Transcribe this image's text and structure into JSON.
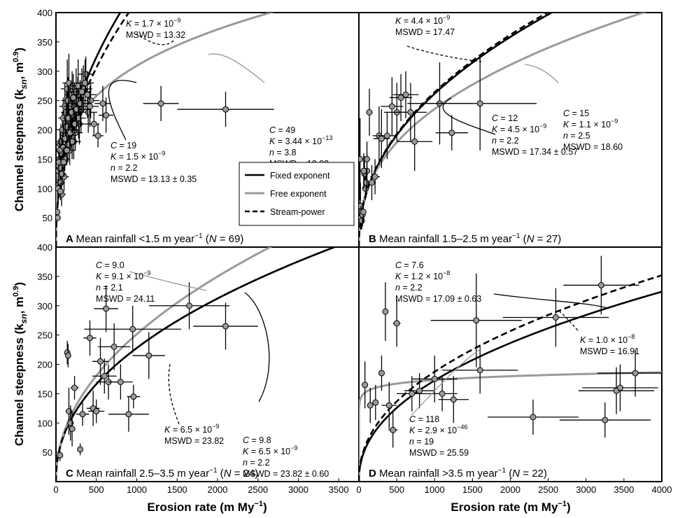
{
  "chart_data": [
    {
      "id": "A",
      "type": "scatter",
      "panel_letter": "A",
      "title": "Mean rainfall <1.5 m year",
      "title_sup": "−1",
      "n_label": "N",
      "n_value": "= 69)",
      "xlim": [
        0,
        3750
      ],
      "ylim": [
        0,
        400
      ],
      "x_ticks": [],
      "y_ticks": [
        "50",
        "100",
        "150",
        "200",
        "250",
        "300",
        "350",
        "400"
      ],
      "curves": [
        {
          "series": "fixed",
          "K": 1.5e-09,
          "n": 2.2
        },
        {
          "series": "free",
          "K": 3.44e-13,
          "n": 3.8
        },
        {
          "series": "stream",
          "K": 1.7e-09,
          "n": 2.2
        }
      ],
      "points": [
        [
          15,
          60,
          20,
          0
        ],
        [
          20,
          50,
          20,
          0
        ],
        [
          25,
          100,
          20,
          15
        ],
        [
          30,
          130,
          20,
          20
        ],
        [
          40,
          150,
          30,
          20
        ],
        [
          50,
          175,
          40,
          25
        ],
        [
          60,
          180,
          50,
          30
        ],
        [
          70,
          160,
          50,
          25
        ],
        [
          80,
          200,
          60,
          30
        ],
        [
          90,
          220,
          60,
          35
        ],
        [
          100,
          120,
          60,
          25
        ],
        [
          110,
          240,
          70,
          40
        ],
        [
          120,
          190,
          70,
          30
        ],
        [
          130,
          230,
          70,
          40
        ],
        [
          140,
          270,
          80,
          50
        ],
        [
          150,
          250,
          80,
          40
        ],
        [
          160,
          280,
          80,
          50
        ],
        [
          170,
          210,
          80,
          30
        ],
        [
          180,
          240,
          90,
          40
        ],
        [
          190,
          200,
          90,
          30
        ],
        [
          200,
          260,
          90,
          40
        ],
        [
          210,
          225,
          90,
          35
        ],
        [
          220,
          180,
          90,
          30
        ],
        [
          230,
          240,
          100,
          40
        ],
        [
          250,
          265,
          110,
          40
        ],
        [
          270,
          250,
          110,
          40
        ],
        [
          290,
          210,
          120,
          35
        ],
        [
          310,
          235,
          110,
          40
        ],
        [
          340,
          270,
          110,
          40
        ],
        [
          370,
          295,
          100,
          30
        ],
        [
          400,
          230,
          110,
          35
        ],
        [
          430,
          250,
          110,
          30
        ],
        [
          470,
          210,
          70,
          20
        ],
        [
          520,
          190,
          70,
          20
        ],
        [
          580,
          245,
          100,
          30
        ],
        [
          620,
          225,
          90,
          30
        ],
        [
          1300,
          245,
          220,
          30
        ],
        [
          2100,
          235,
          600,
          30
        ],
        [
          60,
          110,
          50,
          20
        ],
        [
          70,
          90,
          50,
          20
        ],
        [
          80,
          140,
          50,
          20
        ],
        [
          90,
          170,
          50,
          25
        ],
        [
          110,
          150,
          60,
          20
        ],
        [
          130,
          205,
          60,
          30
        ],
        [
          150,
          175,
          70,
          30
        ],
        [
          170,
          165,
          70,
          25
        ],
        [
          200,
          180,
          80,
          30
        ],
        [
          240,
          195,
          90,
          30
        ],
        [
          280,
          220,
          90,
          35
        ],
        [
          50,
          135,
          40,
          20
        ],
        [
          45,
          165,
          30,
          20
        ],
        [
          35,
          145,
          30,
          20
        ],
        [
          55,
          95,
          40,
          15
        ],
        [
          75,
          125,
          50,
          20
        ],
        [
          95,
          145,
          50,
          25
        ],
        [
          115,
          185,
          60,
          25
        ],
        [
          135,
          165,
          60,
          25
        ],
        [
          155,
          220,
          70,
          30
        ],
        [
          175,
          195,
          70,
          30
        ],
        [
          195,
          230,
          80,
          35
        ],
        [
          215,
          255,
          90,
          40
        ],
        [
          235,
          210,
          90,
          35
        ],
        [
          255,
          235,
          100,
          40
        ],
        [
          275,
          275,
          100,
          45
        ],
        [
          300,
          245,
          110,
          40
        ],
        [
          320,
          265,
          110,
          40
        ],
        [
          360,
          280,
          110,
          40
        ],
        [
          390,
          260,
          110,
          40
        ],
        [
          420,
          240,
          110,
          35
        ]
      ],
      "labels": [
        {
          "lines": [
            "C = 19",
            "K = 1.5 × 10",
            "n = 2.2",
            "MSWD = 13.13 ± 0.35"
          ],
          "sup": "−9"
        },
        {
          "lines": [
            "C = 49",
            "K = 3.44 × 10",
            "n = 3.8",
            "MSWD = 12.83"
          ],
          "sup": "−13"
        },
        {
          "lines": [
            "K = 1.7 × 10",
            "MSWD = 13.32"
          ],
          "sup": "−9"
        }
      ],
      "legend": {
        "position": "bottom-right",
        "items": [
          "Fixed exponent",
          "Free exponent",
          "Stream-power"
        ]
      }
    },
    {
      "id": "B",
      "type": "scatter",
      "panel_letter": "B",
      "title": "Mean rainfall 1.5–2.5 m year",
      "title_sup": "−1",
      "n_label": "N",
      "n_value": "= 27)",
      "xlim": [
        0,
        3750
      ],
      "ylim": [
        0,
        400
      ],
      "x_ticks": [],
      "y_ticks": [],
      "curves": [
        {
          "series": "fixed",
          "K": 4.5e-09,
          "n": 2.2
        },
        {
          "series": "free",
          "K": 1.1e-09,
          "n": 2.5
        },
        {
          "series": "stream",
          "K": 4.4e-09,
          "n": 2.2
        }
      ],
      "points": [
        [
          15,
          150,
          30,
          70
        ],
        [
          20,
          70,
          30,
          40
        ],
        [
          25,
          50,
          20,
          20
        ],
        [
          35,
          45,
          20,
          15
        ],
        [
          45,
          55,
          30,
          20
        ],
        [
          55,
          60,
          30,
          20
        ],
        [
          70,
          125,
          40,
          30
        ],
        [
          80,
          100,
          40,
          20
        ],
        [
          90,
          110,
          40,
          25
        ],
        [
          100,
          130,
          40,
          30
        ],
        [
          130,
          230,
          40,
          40
        ],
        [
          250,
          190,
          80,
          50
        ],
        [
          280,
          185,
          100,
          50
        ],
        [
          350,
          190,
          120,
          40
        ],
        [
          410,
          240,
          140,
          50
        ],
        [
          470,
          230,
          160,
          50
        ],
        [
          520,
          255,
          140,
          40
        ],
        [
          580,
          260,
          160,
          40
        ],
        [
          640,
          230,
          200,
          50
        ],
        [
          690,
          180,
          220,
          50
        ],
        [
          1000,
          245,
          400,
          70
        ],
        [
          1150,
          195,
          200,
          30
        ],
        [
          1500,
          245,
          700,
          80
        ],
        [
          100,
          150,
          40,
          30
        ],
        [
          160,
          110,
          50,
          30
        ],
        [
          200,
          120,
          60,
          30
        ],
        [
          60,
          130,
          40,
          30
        ]
      ],
      "labels": [
        {
          "lines": [
            "K = 4.4 × 10",
            "MSWD = 17.47"
          ],
          "sup": "−9"
        },
        {
          "lines": [
            "C = 15",
            "K = 1.1 × 10",
            "n = 2.5",
            "MSWD = 18.60"
          ],
          "sup": "−9"
        },
        {
          "lines": [
            "C = 12",
            "K = 4.5 × 10",
            "n = 2.2",
            "MSWD = 17.34 ± 0.57"
          ],
          "sup": "−9"
        }
      ]
    },
    {
      "id": "C",
      "type": "scatter",
      "panel_letter": "C",
      "title": "Mean rainfall 2.5–3.5 m year",
      "title_sup": "−1",
      "n_label": "N",
      "n_value": "= 24)",
      "xlim": [
        0,
        3750
      ],
      "ylim": [
        0,
        400
      ],
      "x_ticks": [
        "0",
        "500",
        "1000",
        "1500",
        "2000",
        "2500",
        "3000",
        "3500"
      ],
      "y_ticks": [
        "50",
        "100",
        "150",
        "200",
        "250",
        "300",
        "350",
        "400"
      ],
      "curves": [
        {
          "series": "fixed",
          "K": 6.5e-09,
          "n": 2.2
        },
        {
          "series": "free",
          "K": 9.1e-09,
          "n": 2.1
        },
        {
          "series": "stream",
          "K": 6.5e-09,
          "n": 2.2
        }
      ],
      "points": [
        [
          50,
          45,
          20,
          10
        ],
        [
          140,
          220,
          20,
          20
        ],
        [
          150,
          215,
          20,
          20
        ],
        [
          160,
          120,
          40,
          40
        ],
        [
          180,
          100,
          40,
          30
        ],
        [
          200,
          90,
          40,
          30
        ],
        [
          230,
          160,
          50,
          20
        ],
        [
          300,
          55,
          30,
          10
        ],
        [
          330,
          115,
          80,
          20
        ],
        [
          420,
          245,
          80,
          30
        ],
        [
          460,
          125,
          80,
          30
        ],
        [
          500,
          120,
          100,
          20
        ],
        [
          550,
          205,
          100,
          40
        ],
        [
          600,
          180,
          150,
          30
        ],
        [
          620,
          295,
          150,
          40
        ],
        [
          650,
          170,
          150,
          30
        ],
        [
          720,
          230,
          200,
          40
        ],
        [
          800,
          170,
          150,
          30
        ],
        [
          900,
          115,
          250,
          30
        ],
        [
          950,
          260,
          600,
          40
        ],
        [
          960,
          145,
          80,
          20
        ],
        [
          1150,
          215,
          200,
          40
        ],
        [
          1650,
          300,
          500,
          40
        ],
        [
          2100,
          265,
          400,
          40
        ]
      ],
      "labels": [
        {
          "lines": [
            "C = 9.0",
            "K = 9.1 × 10",
            "n = 2.1",
            "MSWD = 24.11"
          ],
          "sup": "−9"
        },
        {
          "lines": [
            "K = 6.5 × 10",
            "MSWD = 23.82"
          ],
          "sup": "−9"
        },
        {
          "lines": [
            "C = 9.8",
            "K = 6.5 × 10",
            "n = 2.2",
            "MSWD = 23.82 ± 0.60"
          ],
          "sup": "−9"
        }
      ]
    },
    {
      "id": "D",
      "type": "scatter",
      "panel_letter": "D",
      "title": "Mean rainfall >3.5 m year",
      "title_sup": "−1",
      "n_label": "N",
      "n_value": "= 22)",
      "xlim": [
        0,
        4000
      ],
      "ylim": [
        0,
        400
      ],
      "x_ticks": [
        "0",
        "500",
        "1000",
        "1500",
        "2000",
        "2500",
        "3000",
        "3500",
        "4000"
      ],
      "y_ticks": [],
      "curves": [
        {
          "series": "fixed",
          "K": 1.2e-08,
          "n": 2.2
        },
        {
          "series": "free",
          "K": 2.9e-46,
          "n": 19
        },
        {
          "series": "stream",
          "K": 1e-08,
          "n": 2.2
        }
      ],
      "points": [
        [
          80,
          165,
          40,
          40
        ],
        [
          150,
          130,
          40,
          30
        ],
        [
          220,
          135,
          40,
          30
        ],
        [
          300,
          185,
          40,
          30
        ],
        [
          350,
          290,
          40,
          50
        ],
        [
          450,
          88,
          60,
          30
        ],
        [
          500,
          270,
          50,
          40
        ],
        [
          700,
          150,
          200,
          30
        ],
        [
          800,
          155,
          200,
          30
        ],
        [
          1000,
          175,
          300,
          40
        ],
        [
          1100,
          150,
          200,
          30
        ],
        [
          1250,
          140,
          200,
          40
        ],
        [
          1550,
          275,
          600,
          80
        ],
        [
          1600,
          190,
          500,
          40
        ],
        [
          2300,
          110,
          600,
          30
        ],
        [
          2600,
          280,
          700,
          50
        ],
        [
          3200,
          335,
          500,
          50
        ],
        [
          3250,
          105,
          600,
          30
        ],
        [
          3400,
          155,
          500,
          40
        ],
        [
          3450,
          160,
          500,
          40
        ],
        [
          3650,
          185,
          500,
          40
        ],
        [
          400,
          130,
          100,
          40
        ]
      ],
      "labels": [
        {
          "lines": [
            "C = 7.6",
            "K = 1.2 × 10",
            "n = 2.2",
            "MSWD = 17.09 ± 0.63"
          ],
          "sup": "−8"
        },
        {
          "lines": [
            "K = 1.0 × 10",
            "MSWD = 16.91"
          ],
          "sup": "−8"
        },
        {
          "lines": [
            "C = 118",
            "K = 2.9 × 10",
            "n = 19",
            "MSWD = 25.59"
          ],
          "sup": "−46"
        }
      ]
    }
  ],
  "axes": {
    "ylabel_main": "Channel steepness  (k",
    "ylabel_sub": "sn",
    "ylabel_tail": ",  m",
    "ylabel_sup": "0.9",
    "ylabel_end": ")",
    "xlabel_main": "Erosion rate (m My",
    "xlabel_sup": "−1",
    "xlabel_end": ")"
  },
  "series_colors": {
    "fixed": "#000000",
    "free": "#9a9a9a",
    "stream": "#000000"
  }
}
